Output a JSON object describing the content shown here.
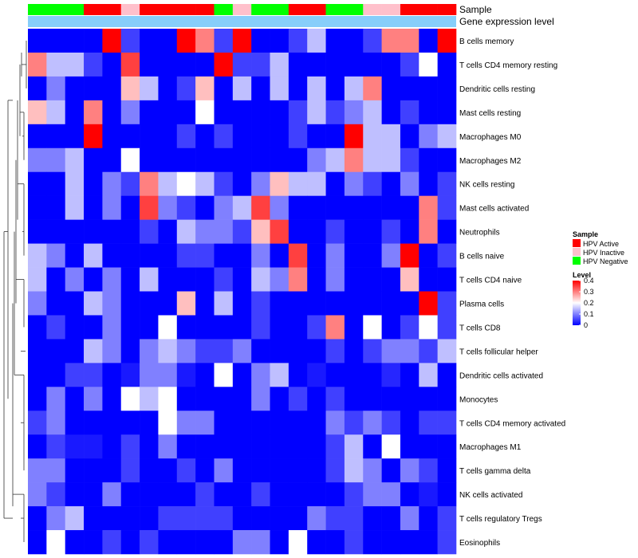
{
  "chart_data": {
    "type": "heatmap",
    "annotation_labels": [
      "Sample",
      "Gene expression level"
    ],
    "rows": [
      "B cells memory",
      "T cells CD4 memory resting",
      "Dendritic cells resting",
      "Mast cells resting",
      "Macrophages M0",
      "Macrophages M2",
      "NK cells resting",
      "Mast cells activated",
      "Neutrophils",
      "B cells naive",
      "T cells CD4 naive",
      "Plasma cells",
      "T cells CD8",
      "T cells follicular helper",
      "Dendritic cells activated",
      "Monocytes",
      "T cells CD4 memory activated",
      "Macrophages M1",
      "T cells gamma delta",
      "NK cells activated",
      "T cells regulatory  Tregs",
      "Eosinophils"
    ],
    "sample_groups": [
      "Negative",
      "Negative",
      "Negative",
      "Active",
      "Active",
      "Inactive",
      "Active",
      "Active",
      "Active",
      "Active",
      "Negative",
      "Inactive",
      "Negative",
      "Negative",
      "Active",
      "Active",
      "Negative",
      "Negative",
      "Inactive",
      "Inactive",
      "Active",
      "Active",
      "Active"
    ],
    "values": [
      [
        0,
        0,
        0,
        0,
        0.4,
        0.05,
        0,
        0,
        0.4,
        0.3,
        0.05,
        0.4,
        0,
        0,
        0.05,
        0.15,
        0,
        0,
        0.05,
        0.3,
        0.3,
        0,
        0.4
      ],
      [
        0.3,
        0.15,
        0.15,
        0.05,
        0,
        0.35,
        0,
        0,
        0,
        0,
        0.4,
        0.05,
        0.05,
        0.15,
        0,
        0,
        0,
        0,
        0,
        0,
        0.05,
        0.2,
        0
      ],
      [
        0,
        0.1,
        0,
        0,
        0,
        0.25,
        0.15,
        0,
        0.05,
        0.25,
        0,
        0.15,
        0,
        0.15,
        0,
        0.15,
        0,
        0.15,
        0.3,
        0,
        0,
        0,
        0
      ],
      [
        0.25,
        0.15,
        0,
        0.3,
        0,
        0.1,
        0,
        0,
        0,
        0.2,
        0,
        0,
        0,
        0,
        0.05,
        0.15,
        0.05,
        0.1,
        0.15,
        0,
        0.05,
        0,
        0
      ],
      [
        0,
        0,
        0,
        0.4,
        0,
        0,
        0,
        0,
        0.05,
        0,
        0.05,
        0,
        0,
        0,
        0.05,
        0,
        0,
        0.4,
        0.15,
        0.15,
        0,
        0.1,
        0.15
      ],
      [
        0.1,
        0.1,
        0.15,
        0,
        0,
        0.2,
        0,
        0,
        0,
        0,
        0,
        0,
        0,
        0,
        0,
        0.1,
        0.15,
        0.3,
        0.15,
        0.15,
        0.05,
        0,
        0
      ],
      [
        0,
        0,
        0.15,
        0,
        0.1,
        0.05,
        0.3,
        0.15,
        0.2,
        0.15,
        0.05,
        0,
        0.1,
        0.25,
        0.15,
        0.15,
        0,
        0.1,
        0.05,
        0,
        0.1,
        0,
        0.05
      ],
      [
        0,
        0,
        0.15,
        0,
        0.1,
        0,
        0.35,
        0.1,
        0.05,
        0,
        0.1,
        0.15,
        0.35,
        0.1,
        0,
        0,
        0,
        0,
        0,
        0,
        0,
        0.3,
        0.05
      ],
      [
        0,
        0,
        0,
        0,
        0,
        0,
        0.05,
        0,
        0.15,
        0.1,
        0.1,
        0.05,
        0.25,
        0.35,
        0,
        0,
        0.05,
        0,
        0,
        0.05,
        0,
        0.3,
        0
      ],
      [
        0.15,
        0.1,
        0,
        0.15,
        0,
        0,
        0,
        0,
        0.05,
        0.05,
        0,
        0,
        0.1,
        0,
        0.35,
        0,
        0.1,
        0,
        0,
        0.1,
        0.4,
        0,
        0.05
      ],
      [
        0.15,
        0,
        0.1,
        0,
        0.1,
        0,
        0.15,
        0,
        0,
        0,
        0.05,
        0,
        0.15,
        0.1,
        0.3,
        0,
        0.1,
        0,
        0,
        0,
        0.25,
        0,
        0
      ],
      [
        0.1,
        0,
        0,
        0.15,
        0.1,
        0,
        0,
        0,
        0.25,
        0,
        0.15,
        0,
        0.05,
        0,
        0,
        0,
        0,
        0,
        0,
        0,
        0,
        0.4,
        0.05
      ],
      [
        0,
        0.05,
        0,
        0,
        0.1,
        0,
        0,
        0.2,
        0,
        0,
        0,
        0,
        0.05,
        0,
        0,
        0.05,
        0.3,
        0,
        0.2,
        0,
        0.05,
        0.2,
        0.05
      ],
      [
        0,
        0,
        0,
        0.15,
        0.1,
        0,
        0.1,
        0.15,
        0.1,
        0.05,
        0.05,
        0.1,
        0,
        0,
        0,
        0,
        0.05,
        0,
        0.05,
        0.1,
        0.1,
        0.05,
        0.15
      ],
      [
        0,
        0,
        0.05,
        0.05,
        0,
        0.02,
        0.1,
        0.1,
        0.02,
        0,
        0.2,
        0,
        0.1,
        0.15,
        0,
        0.02,
        0,
        0,
        0,
        0.03,
        0,
        0.15,
        0
      ],
      [
        0,
        0.1,
        0,
        0.1,
        0,
        0.2,
        0.15,
        0.2,
        0,
        0,
        0,
        0,
        0.1,
        0,
        0.05,
        0,
        0.05,
        0,
        0,
        0,
        0,
        0,
        0
      ],
      [
        0.05,
        0.1,
        0,
        0,
        0,
        0,
        0,
        0.2,
        0.1,
        0.1,
        0,
        0,
        0,
        0,
        0,
        0,
        0.1,
        0.05,
        0.1,
        0.05,
        0,
        0.05,
        0.05
      ],
      [
        0,
        0.05,
        0.02,
        0.02,
        0,
        0.05,
        0,
        0.1,
        0,
        0,
        0,
        0,
        0,
        0,
        0,
        0,
        0.05,
        0.15,
        0,
        0.2,
        0,
        0,
        0
      ],
      [
        0.1,
        0.1,
        0,
        0,
        0,
        0.05,
        0,
        0,
        0.05,
        0,
        0.1,
        0,
        0,
        0,
        0,
        0,
        0.05,
        0.15,
        0.1,
        0,
        0.1,
        0.05,
        0
      ],
      [
        0.1,
        0.05,
        0,
        0,
        0.1,
        0,
        0,
        0,
        0,
        0.05,
        0,
        0,
        0.05,
        0,
        0,
        0,
        0,
        0.05,
        0.1,
        0.1,
        0,
        0.02,
        0
      ],
      [
        0,
        0.1,
        0.15,
        0,
        0,
        0,
        0,
        0.05,
        0.05,
        0.05,
        0.05,
        0,
        0,
        0,
        0,
        0.1,
        0.05,
        0.05,
        0,
        0,
        0.1,
        0,
        0.05
      ],
      [
        0,
        0.2,
        0,
        0,
        0.05,
        0,
        0.05,
        0,
        0,
        0,
        0,
        0.1,
        0.1,
        0,
        0.2,
        0,
        0,
        0.05,
        0,
        0,
        0,
        0,
        0.05
      ]
    ],
    "color_scale": {
      "min": 0,
      "max": 0.4,
      "low_color": "#0000ff",
      "mid_color": "#ffffff",
      "high_color": "#ff0000",
      "mid_value": 0.2
    },
    "legend": {
      "sample_title": "Sample",
      "sample_items": [
        {
          "key": "Active",
          "label": "HPV Active",
          "color": "#ff0000"
        },
        {
          "key": "Inactive",
          "label": "HPV Inactive",
          "color": "#ffc0cb"
        },
        {
          "key": "Negative",
          "label": "HPV Negative",
          "color": "#00ff00"
        }
      ],
      "level_title": "Level",
      "level_ticks": [
        "0.4",
        "0.3",
        "0.2",
        "0.1",
        "0"
      ],
      "level_tick_values": [
        0.4,
        0.3,
        0.2,
        0.1,
        0
      ]
    },
    "expression_bar_color": "#87cefa"
  }
}
